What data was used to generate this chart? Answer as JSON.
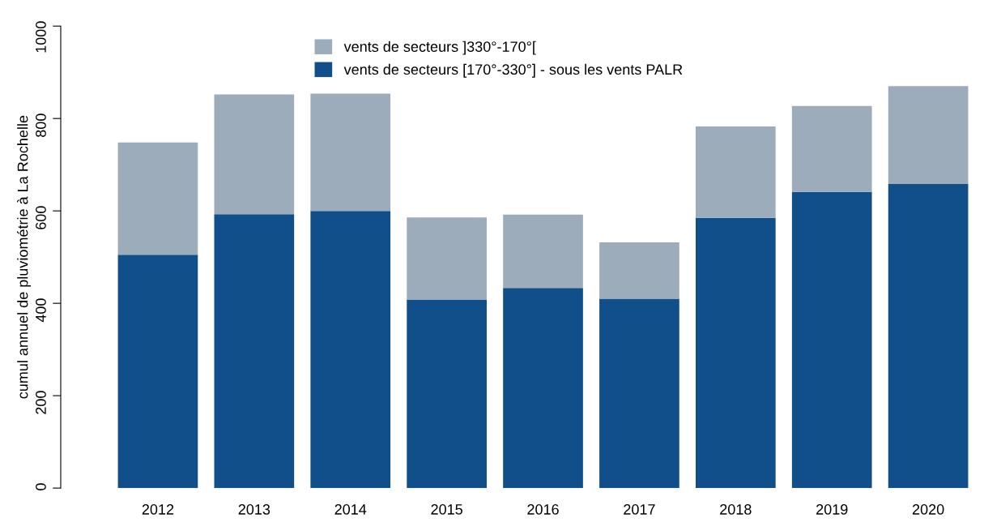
{
  "chart_data": {
    "type": "bar",
    "stacked": true,
    "ylabel": "cumul annuel de pluviométrie à La Rochelle",
    "categories": [
      "2012",
      "2013",
      "2014",
      "2015",
      "2016",
      "2017",
      "2018",
      "2019",
      "2020"
    ],
    "series": [
      {
        "name": "vents de secteurs [170°-330°] - sous les vents PALR",
        "color": "#114f8a",
        "values": [
          505,
          593,
          600,
          408,
          433,
          410,
          585,
          641,
          658
        ]
      },
      {
        "name": "vents de secteurs ]330°-170°[",
        "color": "#9dacbb",
        "values": [
          243,
          259,
          254,
          178,
          159,
          122,
          198,
          186,
          212
        ]
      }
    ],
    "ylim": [
      0,
      1000
    ],
    "yticks": [
      0,
      200,
      400,
      600,
      800,
      1000
    ],
    "legend": "top",
    "grid": false
  }
}
